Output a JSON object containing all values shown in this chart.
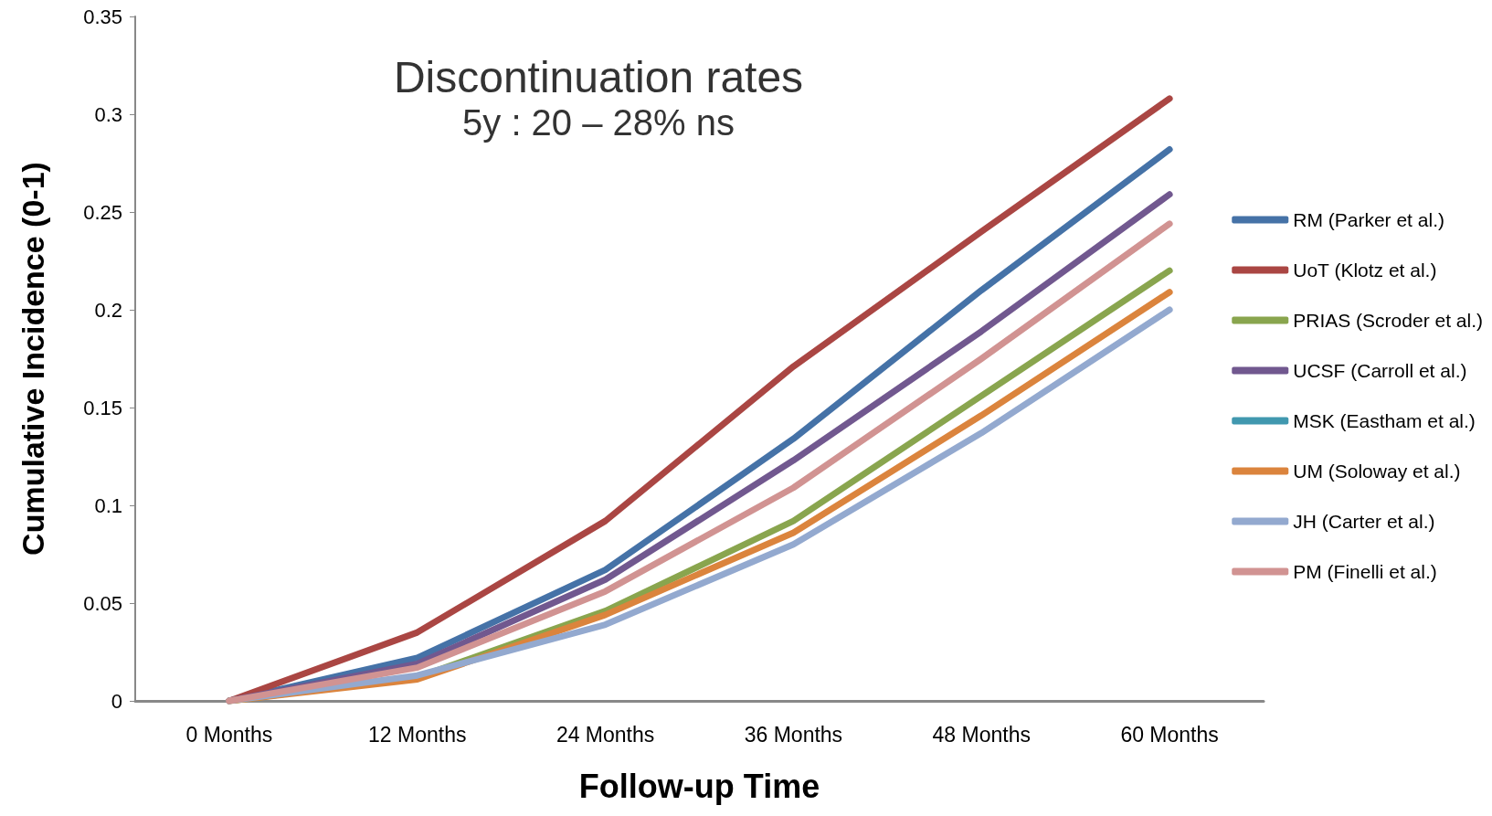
{
  "chart_data": {
    "type": "line",
    "title": "Discontinuation rates",
    "subtitle": "5y : 20 – 28% ns",
    "xlabel": "Follow-up Time",
    "ylabel": "Cumulative Incidence (0-1)",
    "categories": [
      "0 Months",
      "12 Months",
      "24 Months",
      "36 Months",
      "48 Months",
      "60 Months"
    ],
    "ylim": [
      0,
      0.35
    ],
    "yticks": [
      0,
      0.05,
      0.1,
      0.15,
      0.2,
      0.25,
      0.3,
      0.35
    ],
    "grid": false,
    "legend": "right",
    "marker": "none",
    "line_style": "solid",
    "series": [
      {
        "name": "RM (Parker et al.)",
        "color": "#4572a7",
        "values": [
          0,
          0.022,
          0.067,
          0.134,
          0.21,
          0.282
        ]
      },
      {
        "name": "UoT (Klotz et al.)",
        "color": "#aa4643",
        "values": [
          0,
          0.035,
          0.092,
          0.171,
          0.24,
          0.308
        ]
      },
      {
        "name": "PRIAS (Scroder et al.)",
        "color": "#89a54e",
        "values": [
          0,
          0.012,
          0.046,
          0.092,
          0.156,
          0.22
        ]
      },
      {
        "name": "UCSF (Carroll et al.)",
        "color": "#71588f",
        "values": [
          0,
          0.019,
          0.062,
          0.123,
          0.189,
          0.259
        ]
      },
      {
        "name": "MSK (Eastham et al.)",
        "color": "#4198af",
        "values": [
          null,
          null,
          null,
          null,
          null,
          null
        ]
      },
      {
        "name": "UM (Soloway et al.)",
        "color": "#db843d",
        "values": [
          0,
          0.011,
          0.044,
          0.086,
          0.146,
          0.209
        ]
      },
      {
        "name": "JH (Carter et al.)",
        "color": "#93a9cf",
        "values": [
          0,
          0.013,
          0.039,
          0.08,
          0.137,
          0.2
        ]
      },
      {
        "name": "PM (Finelli et al.)",
        "color": "#d19392",
        "values": [
          0,
          0.017,
          0.056,
          0.109,
          0.175,
          0.244
        ]
      }
    ]
  }
}
